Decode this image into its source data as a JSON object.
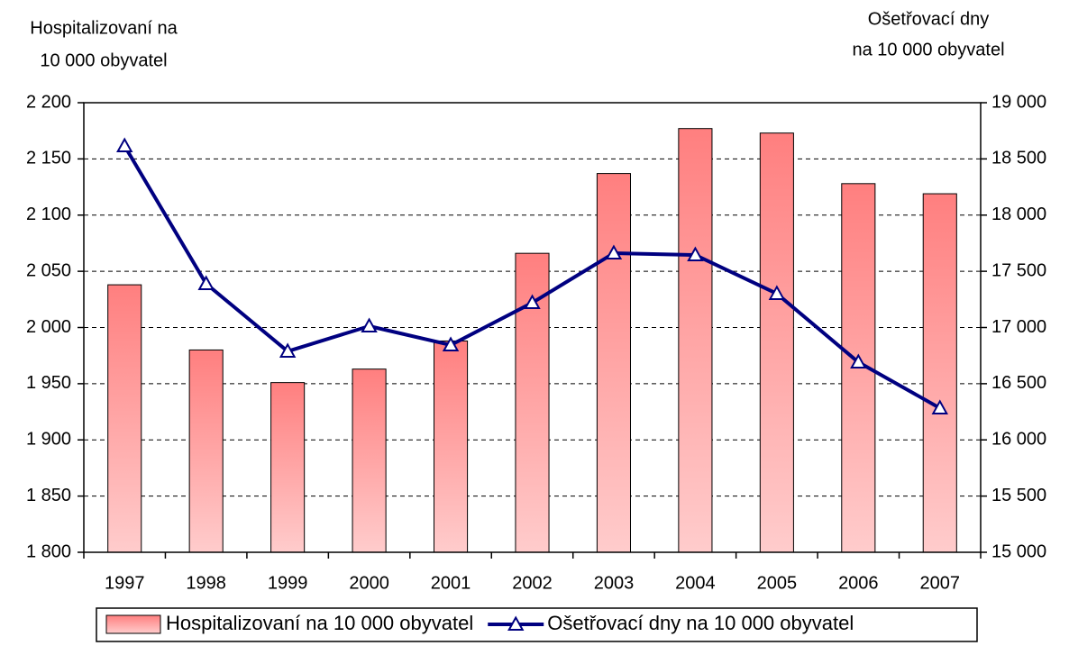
{
  "chart_data": {
    "type": "bar-line",
    "y_label": [
      "Hospitalizovaní na",
      "10 000 obyvatel"
    ],
    "y2_label": [
      "Ošetřovací dny",
      "na 10 000 obyvatel"
    ],
    "categories": [
      "1997",
      "1998",
      "1999",
      "2000",
      "2001",
      "2002",
      "2003",
      "2004",
      "2005",
      "2006",
      "2007"
    ],
    "series": [
      {
        "name": "Hospitalizovaní na 10 000 obyvatel",
        "type": "bar",
        "color": "#ff7f7f",
        "values": [
          2038,
          1980,
          1951,
          1963,
          1988,
          2066,
          2137,
          2177,
          2173,
          2128,
          2119
        ]
      },
      {
        "name": "Ošetřovací dny na 10 000 obyvatel",
        "type": "line",
        "axis": "y2",
        "color": "#000080",
        "marker": "triangle",
        "values": [
          18615,
          17389,
          16788,
          17012,
          16844,
          17220,
          17661,
          17645,
          17301,
          16691,
          16283
        ]
      }
    ],
    "ylim": [
      1800,
      2200
    ],
    "yticks": [
      {
        "value": 1800,
        "label": "1 800"
      },
      {
        "value": 1850,
        "label": "1 850"
      },
      {
        "value": 1900,
        "label": "1 900"
      },
      {
        "value": 1950,
        "label": "1 950"
      },
      {
        "value": 2000,
        "label": "2 000"
      },
      {
        "value": 2050,
        "label": "2 050"
      },
      {
        "value": 2100,
        "label": "2 100"
      },
      {
        "value": 2150,
        "label": "2 150"
      },
      {
        "value": 2200,
        "label": "2 200"
      }
    ],
    "y2lim": [
      15000,
      19000
    ],
    "y2ticks": [
      {
        "value": 15000,
        "label": "15 000"
      },
      {
        "value": 15500,
        "label": "15 500"
      },
      {
        "value": 16000,
        "label": "16 000"
      },
      {
        "value": 16500,
        "label": "16 500"
      },
      {
        "value": 17000,
        "label": "17 000"
      },
      {
        "value": 17500,
        "label": "17 500"
      },
      {
        "value": 18000,
        "label": "18 000"
      },
      {
        "value": 18500,
        "label": "18 500"
      },
      {
        "value": 19000,
        "label": "19 000"
      }
    ],
    "grid": true,
    "legend": "bottom"
  }
}
